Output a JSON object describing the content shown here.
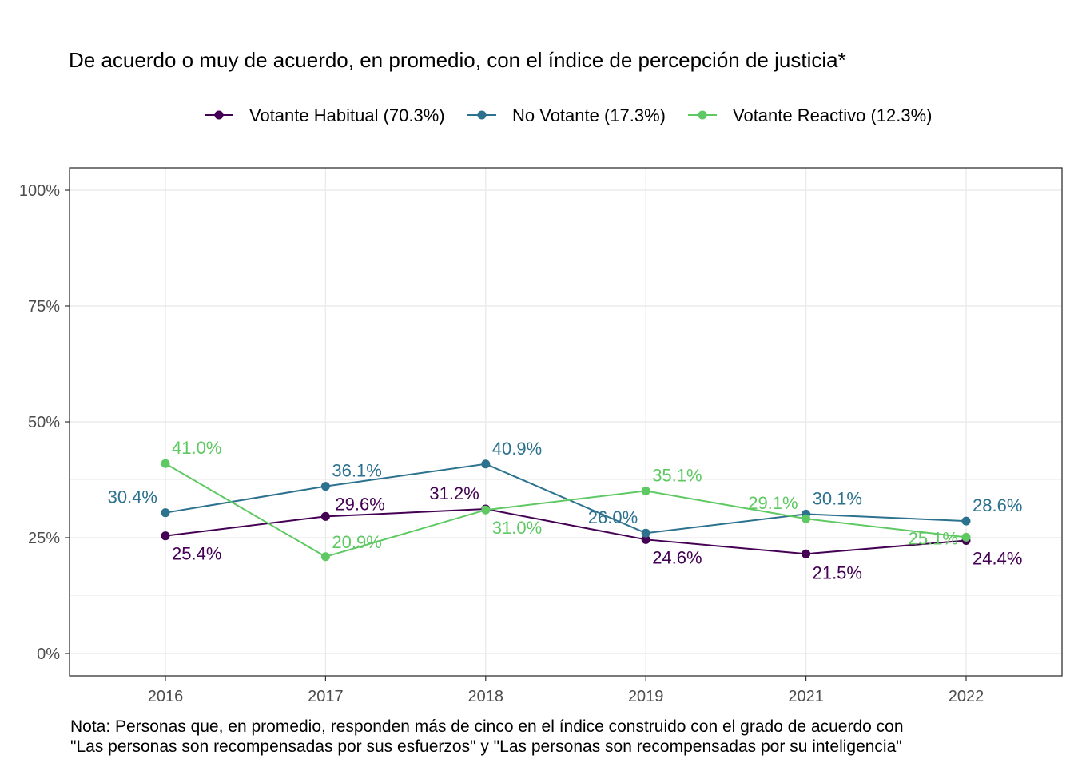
{
  "chart_data": {
    "type": "line",
    "title": "De acuerdo o muy de acuerdo, en promedio, con el índice de percepción de justicia*",
    "categories": [
      "2016",
      "2017",
      "2018",
      "2019",
      "2021",
      "2022"
    ],
    "series": [
      {
        "name": "Votante Habitual (70.3%)",
        "color": "#440154",
        "values": [
          25.4,
          29.6,
          31.2,
          24.6,
          21.5,
          24.4
        ],
        "labels": [
          "25.4%",
          "29.6%",
          "31.2%",
          "24.6%",
          "21.5%",
          "24.4%"
        ]
      },
      {
        "name": "No Votante (17.3%)",
        "color": "#2c728e",
        "values": [
          30.4,
          36.1,
          40.9,
          26.0,
          30.1,
          28.6
        ],
        "labels": [
          "30.4%",
          "36.1%",
          "40.9%",
          "26.0%",
          "30.1%",
          "28.6%"
        ]
      },
      {
        "name": "Votante Reactivo (12.3%)",
        "color": "#5ec962",
        "values": [
          41.0,
          20.9,
          31.0,
          35.1,
          29.1,
          25.1
        ],
        "labels": [
          "41.0%",
          "20.9%",
          "31.0%",
          "35.1%",
          "29.1%",
          "25.1%"
        ]
      }
    ],
    "ylim": [
      0,
      100
    ],
    "yticks": [
      0,
      25,
      50,
      75,
      100
    ],
    "ytick_labels": [
      "0%",
      "25%",
      "50%",
      "75%",
      "100%"
    ],
    "grid": true,
    "legend_position": "top",
    "xlabel": "",
    "ylabel": "",
    "caption": [
      "Nota: Personas que, en promedio, responden más de cinco en el índice construido con el grado de acuerdo con",
      "\"Las personas son recompensadas por sus esfuerzos\" y \"Las personas son recompensadas por su inteligencia\""
    ]
  }
}
